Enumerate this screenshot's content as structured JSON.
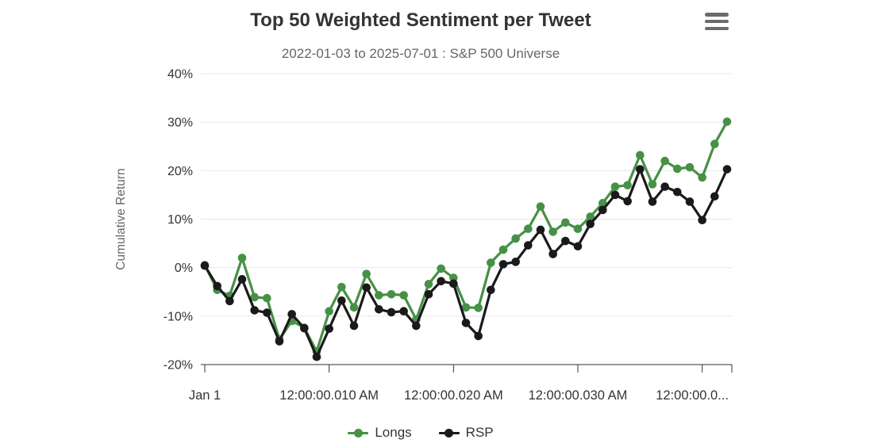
{
  "chart_data": {
    "type": "line",
    "title": "Top 50 Weighted Sentiment per Tweet",
    "subtitle": "2022-01-03 to 2025-07-01 : S&P 500 Universe",
    "xlabel": "",
    "ylabel": "Cumulative Return",
    "ylim": [
      -20,
      40
    ],
    "y_ticks": [
      40,
      30,
      20,
      10,
      0,
      -10,
      -20
    ],
    "y_suffix": "%",
    "x": {
      "start": 0,
      "step": 1,
      "count": 43,
      "unit": "ms"
    },
    "x_tick_positions": [
      0,
      10,
      20,
      30,
      40
    ],
    "x_tick_labels": [
      "Jan 1",
      "12:00:00.010 AM",
      "12:00:00.020 AM",
      "12:00:00.030 AM",
      "12:00:00.0..."
    ],
    "grid": true,
    "grid_color": "#e6e6e6",
    "axis_color": "#333333",
    "label_color": "#333333",
    "axis_title_color": "#666666",
    "background": "#ffffff",
    "legend_position": "bottom",
    "menu_icon": "hamburger-menu-icon",
    "series": [
      {
        "name": "Longs",
        "color": "#469146",
        "marker": "circle",
        "values": [
          0.5,
          -4.6,
          -5.8,
          2.0,
          -6.1,
          -6.3,
          -14.8,
          -11.0,
          -12.4,
          -17.3,
          -9.0,
          -4.0,
          -8.2,
          -1.3,
          -5.7,
          -5.5,
          -5.7,
          -10.7,
          -3.4,
          -0.2,
          -2.1,
          -8.2,
          -8.3,
          1.0,
          3.7,
          6.0,
          8.0,
          12.6,
          7.4,
          9.3,
          8.0,
          10.5,
          13.3,
          16.7,
          17.0,
          23.2,
          17.2,
          22.0,
          20.4,
          20.7,
          18.6,
          25.5,
          30.1
        ]
      },
      {
        "name": "RSP",
        "color": "#1a1a1a",
        "marker": "circle",
        "values": [
          0.4,
          -3.8,
          -6.9,
          -2.4,
          -8.8,
          -9.3,
          -15.2,
          -9.6,
          -12.5,
          -18.4,
          -12.6,
          -6.8,
          -12.0,
          -4.1,
          -8.6,
          -9.2,
          -9.0,
          -12.0,
          -5.5,
          -2.8,
          -3.3,
          -11.4,
          -14.1,
          -4.6,
          0.7,
          1.2,
          4.6,
          7.8,
          2.8,
          5.5,
          4.4,
          9.0,
          11.9,
          15.0,
          13.7,
          20.3,
          13.6,
          16.7,
          15.6,
          13.6,
          9.8,
          14.7,
          20.3
        ]
      }
    ]
  }
}
